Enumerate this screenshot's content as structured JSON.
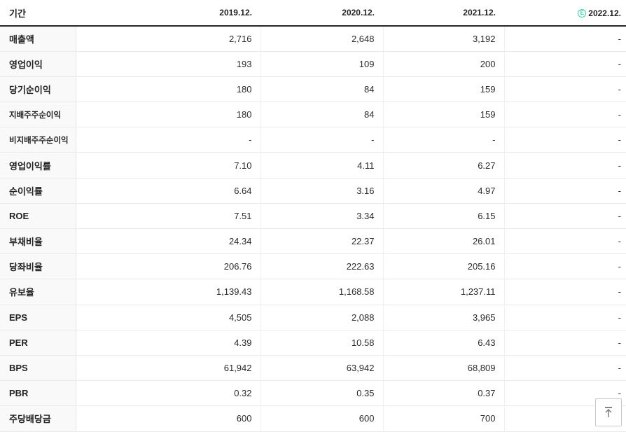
{
  "colors": {
    "estimate_green": "#3ecba4",
    "header_border": "#262626"
  },
  "table": {
    "header": {
      "period_label": "기간",
      "columns": [
        "2019.12.",
        "2020.12.",
        "2021.12.",
        "2022.12."
      ],
      "estimate_badge": "E",
      "estimate_column_index": 3
    },
    "rows": [
      {
        "label": "매출액",
        "small": false,
        "values": [
          "2,716",
          "2,648",
          "3,192",
          "-"
        ]
      },
      {
        "label": "영업이익",
        "small": false,
        "values": [
          "193",
          "109",
          "200",
          "-"
        ]
      },
      {
        "label": "당기순이익",
        "small": false,
        "values": [
          "180",
          "84",
          "159",
          "-"
        ]
      },
      {
        "label": "지배주주순이익",
        "small": true,
        "values": [
          "180",
          "84",
          "159",
          "-"
        ]
      },
      {
        "label": "비지배주주순이익",
        "small": true,
        "values": [
          "-",
          "-",
          "-",
          "-"
        ]
      },
      {
        "label": "영업이익률",
        "small": false,
        "values": [
          "7.10",
          "4.11",
          "6.27",
          "-"
        ]
      },
      {
        "label": "순이익률",
        "small": false,
        "values": [
          "6.64",
          "3.16",
          "4.97",
          "-"
        ]
      },
      {
        "label": "ROE",
        "small": false,
        "values": [
          "7.51",
          "3.34",
          "6.15",
          "-"
        ]
      },
      {
        "label": "부채비율",
        "small": false,
        "values": [
          "24.34",
          "22.37",
          "26.01",
          "-"
        ]
      },
      {
        "label": "당좌비율",
        "small": false,
        "values": [
          "206.76",
          "222.63",
          "205.16",
          "-"
        ]
      },
      {
        "label": "유보율",
        "small": false,
        "values": [
          "1,139.43",
          "1,168.58",
          "1,237.11",
          "-"
        ]
      },
      {
        "label": "EPS",
        "small": false,
        "values": [
          "4,505",
          "2,088",
          "3,965",
          "-"
        ]
      },
      {
        "label": "PER",
        "small": false,
        "values": [
          "4.39",
          "10.58",
          "6.43",
          "-"
        ]
      },
      {
        "label": "BPS",
        "small": false,
        "values": [
          "61,942",
          "63,942",
          "68,809",
          "-"
        ]
      },
      {
        "label": "PBR",
        "small": false,
        "values": [
          "0.32",
          "0.35",
          "0.37",
          "-"
        ]
      },
      {
        "label": "주당배당금",
        "small": false,
        "values": [
          "600",
          "600",
          "700",
          "-"
        ]
      }
    ]
  },
  "scroll_top": {
    "icon": "arrow-up-to-top"
  }
}
